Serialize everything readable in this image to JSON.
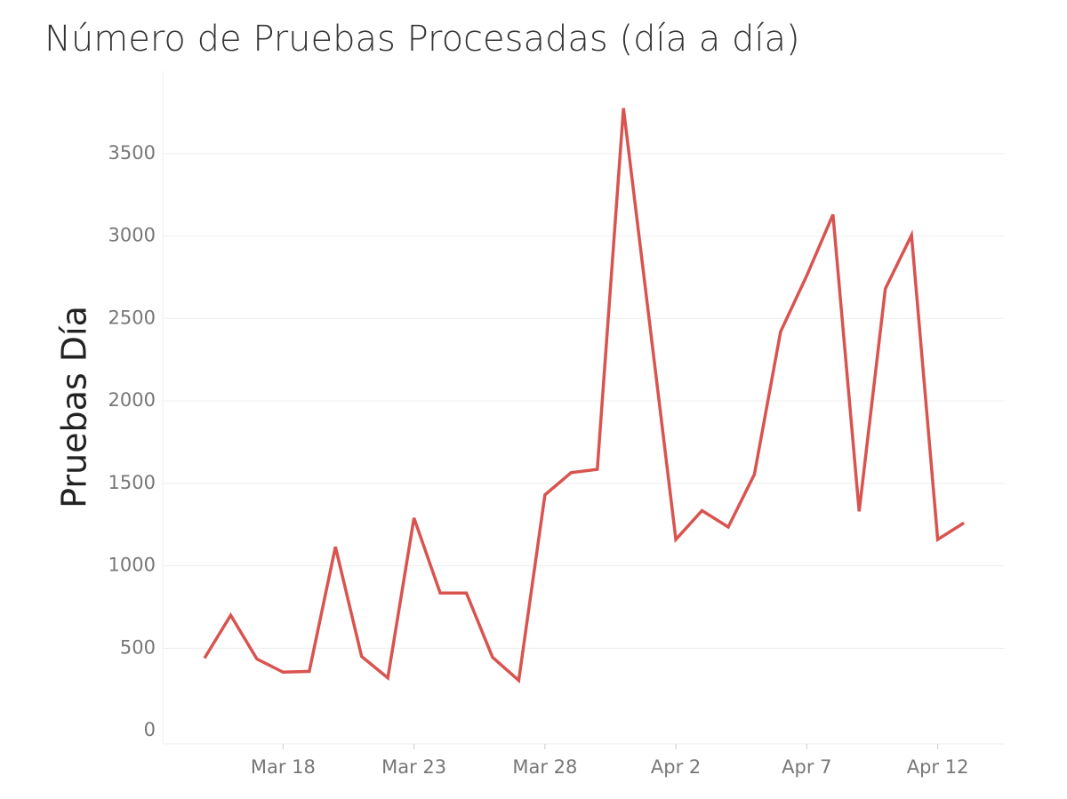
{
  "chart_data": {
    "type": "line",
    "title": "Número de Pruebas Procesadas (día a día)",
    "y_label": "Pruebas Día",
    "categories": [
      null,
      null,
      null,
      "Mar 18",
      null,
      null,
      null,
      null,
      "Mar 23",
      null,
      null,
      null,
      null,
      "Mar 28",
      null,
      null,
      null,
      null,
      "Apr 2",
      null,
      null,
      null,
      null,
      "Apr 7",
      null,
      null,
      null,
      null,
      "Apr 12",
      null
    ],
    "series": [
      {
        "name": "Pruebas Día",
        "color": "#d9534f",
        "values": [
          440,
          700,
          435,
          355,
          360,
          1115,
          450,
          320,
          1290,
          835,
          835,
          445,
          305,
          1430,
          1565,
          1585,
          3775,
          2470,
          1160,
          1335,
          1235,
          1555,
          2420,
          2760,
          3130,
          1330,
          2680,
          3005,
          1160,
          1260
        ]
      }
    ],
    "ylim": [
      -80,
      4000
    ],
    "yticks": [
      0,
      500,
      1000,
      1500,
      2000,
      2500,
      3000,
      3500
    ],
    "grid": true
  }
}
